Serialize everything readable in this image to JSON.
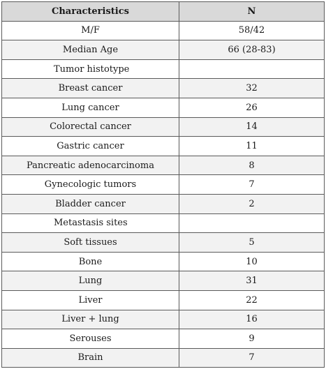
{
  "table": {
    "headers": [
      "Characteristics",
      "N"
    ],
    "rows": [
      {
        "label": "M/F",
        "value": "58/42",
        "section": false
      },
      {
        "label": "Median Age",
        "value": "66 (28-83)",
        "section": false
      },
      {
        "label": "Tumor histotype",
        "value": "",
        "section": true
      },
      {
        "label": "Breast cancer",
        "value": "32",
        "section": false
      },
      {
        "label": "Lung cancer",
        "value": "26",
        "section": false
      },
      {
        "label": "Colorectal cancer",
        "value": "14",
        "section": false
      },
      {
        "label": "Gastric cancer",
        "value": "11",
        "section": false
      },
      {
        "label": "Pancreatic adenocarcinoma",
        "value": "8",
        "section": false
      },
      {
        "label": "Gynecologic tumors",
        "value": "7",
        "section": false
      },
      {
        "label": "Bladder cancer",
        "value": "2",
        "section": false
      },
      {
        "label": "Metastasis sites",
        "value": "",
        "section": true
      },
      {
        "label": "Soft tissues",
        "value": "5",
        "section": false
      },
      {
        "label": "Bone",
        "value": "10",
        "section": false
      },
      {
        "label": "Lung",
        "value": "31",
        "section": false
      },
      {
        "label": "Liver",
        "value": "22",
        "section": false
      },
      {
        "label": "Liver + lung",
        "value": "16",
        "section": false
      },
      {
        "label": "Serouses",
        "value": "9",
        "section": false
      },
      {
        "label": "Brain",
        "value": "7",
        "section": false
      }
    ]
  }
}
